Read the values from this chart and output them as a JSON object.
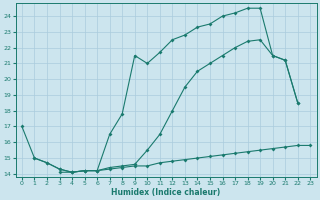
{
  "xlabel": "Humidex (Indice chaleur)",
  "bg_color": "#cce5ee",
  "grid_color": "#aaccdd",
  "line_color": "#1a7a6e",
  "xlim": [
    -0.5,
    23.5
  ],
  "ylim": [
    13.8,
    24.8
  ],
  "yticks": [
    14,
    15,
    16,
    17,
    18,
    19,
    20,
    21,
    22,
    23,
    24
  ],
  "xticks": [
    0,
    1,
    2,
    3,
    4,
    5,
    6,
    7,
    8,
    9,
    10,
    11,
    12,
    13,
    14,
    15,
    16,
    17,
    18,
    19,
    20,
    21,
    22,
    23
  ],
  "line1_x": [
    0,
    1,
    2,
    3,
    4,
    5,
    6,
    7,
    8,
    9,
    10,
    11,
    12,
    13,
    14,
    15,
    16,
    17,
    18,
    19,
    20,
    21,
    22
  ],
  "line1_y": [
    17.0,
    15.0,
    14.7,
    14.3,
    14.1,
    14.2,
    14.2,
    16.5,
    17.8,
    21.5,
    21.0,
    21.7,
    22.5,
    22.8,
    23.3,
    23.5,
    24.0,
    24.2,
    24.5,
    24.5,
    21.5,
    21.2,
    18.5
  ],
  "line2_x": [
    3,
    4,
    5,
    6,
    7,
    8,
    9,
    10,
    11,
    12,
    13,
    14,
    15,
    16,
    17,
    18,
    19,
    20,
    21,
    22
  ],
  "line2_y": [
    14.1,
    14.1,
    14.2,
    14.2,
    14.4,
    14.5,
    14.6,
    15.5,
    16.5,
    18.0,
    19.5,
    20.5,
    21.0,
    21.5,
    22.0,
    22.4,
    22.5,
    21.5,
    21.2,
    18.5
  ],
  "line3_x": [
    1,
    2,
    3,
    4,
    5,
    6,
    7,
    8,
    9,
    10,
    11,
    12,
    13,
    14,
    15,
    16,
    17,
    18,
    19,
    20,
    21,
    22,
    23
  ],
  "line3_y": [
    15.0,
    14.7,
    14.3,
    14.1,
    14.2,
    14.2,
    14.3,
    14.4,
    14.5,
    14.5,
    14.7,
    14.8,
    14.9,
    15.0,
    15.1,
    15.2,
    15.3,
    15.4,
    15.5,
    15.6,
    15.7,
    15.8,
    15.8
  ]
}
